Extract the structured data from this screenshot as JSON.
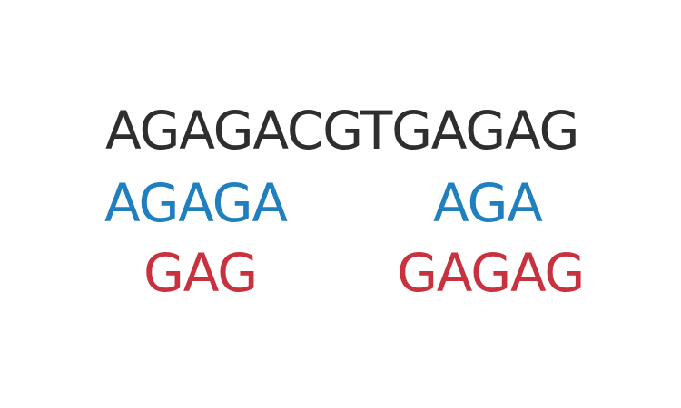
{
  "colors": {
    "reference": "#2e2e2e",
    "blue": "#1f7fbf",
    "red": "#c8323f"
  },
  "sequence": {
    "reference": "AGAGACGTGAGAG"
  },
  "matches": {
    "blue": {
      "left": "AGAGA",
      "right": "AGA"
    },
    "red": {
      "left": "GAG",
      "right": "GAGAG"
    }
  }
}
